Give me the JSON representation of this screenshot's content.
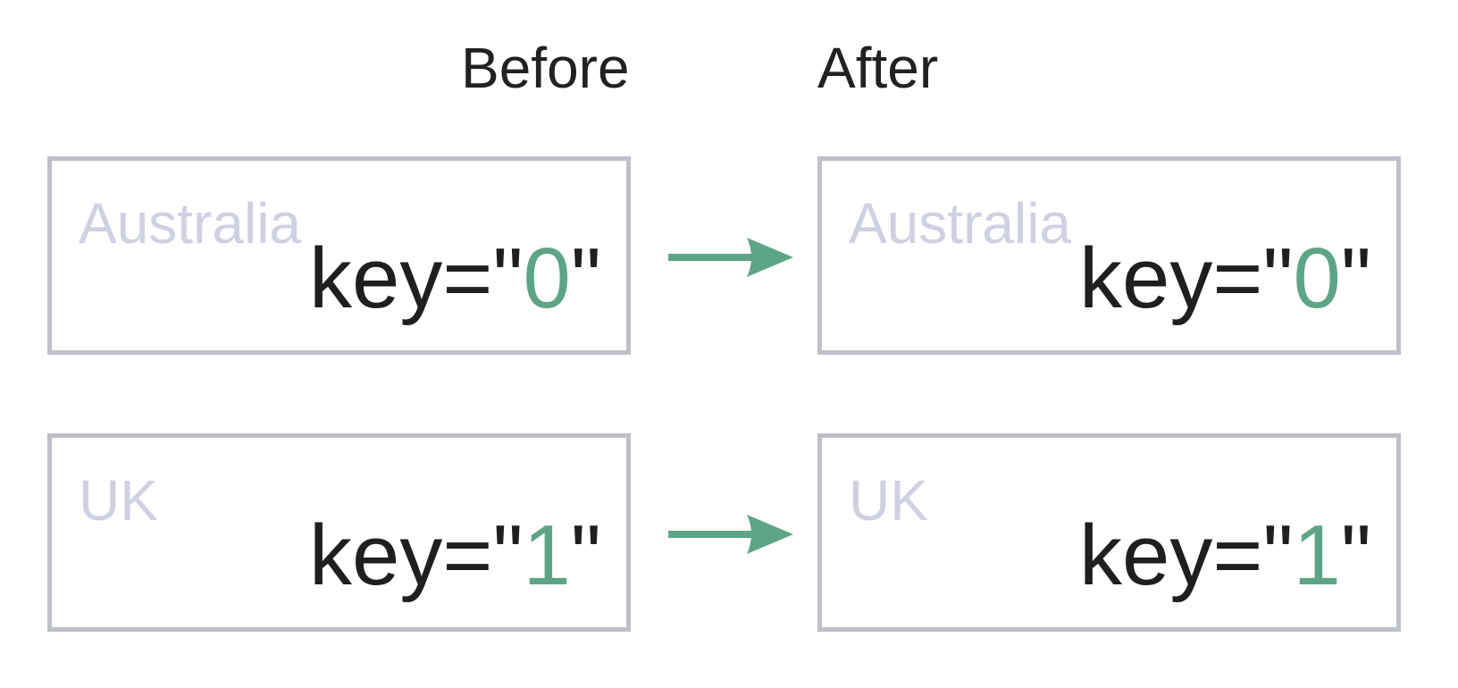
{
  "headings": {
    "before": "Before",
    "after": "After"
  },
  "rows": [
    {
      "before": {
        "country": "Australia",
        "key_prefix": "key=\"",
        "key_value": "0",
        "key_suffix": "\""
      },
      "after": {
        "country": "Australia",
        "key_prefix": "key=\"",
        "key_value": "0",
        "key_suffix": "\""
      }
    },
    {
      "before": {
        "country": "UK",
        "key_prefix": "key=\"",
        "key_value": "1",
        "key_suffix": "\""
      },
      "after": {
        "country": "UK",
        "key_prefix": "key=\"",
        "key_value": "1",
        "key_suffix": "\""
      }
    }
  ],
  "colors": {
    "accent": "#5ea587",
    "box_border": "#bec0c8",
    "country_text": "#cfd1e2",
    "key_text": "#1f1f1f"
  },
  "icons": {
    "transition": "arrow-right-icon"
  }
}
